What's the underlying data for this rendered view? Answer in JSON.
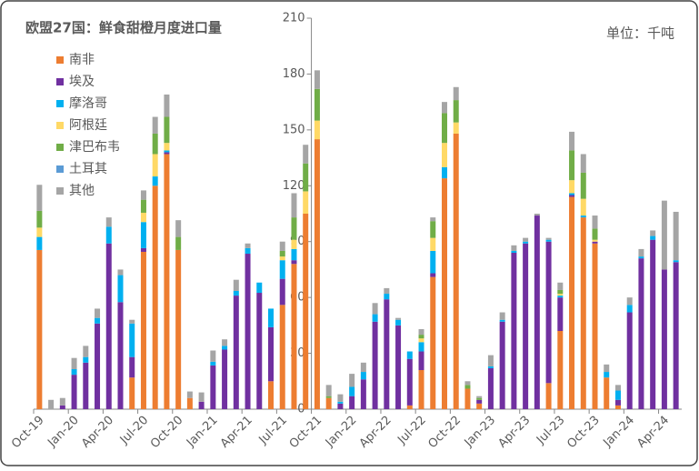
{
  "chart_data": {
    "type": "bar",
    "stacked": true,
    "title": "欧盟27国：鲜食甜橙月度进口量",
    "unit": "单位：千吨",
    "categories": [
      "Oct-19",
      null,
      null,
      "Jan-20",
      null,
      null,
      "Apr-20",
      null,
      null,
      "Jul-20",
      null,
      null,
      "Oct-20",
      null,
      null,
      "Jan-21",
      null,
      null,
      "Apr-21",
      null,
      null,
      "Jul-21",
      null,
      null,
      "Oct-21",
      null,
      null,
      "Jan-22",
      null,
      null,
      "Apr-22",
      null,
      null,
      "Jul-22",
      null,
      null,
      "Oct-22",
      null,
      null,
      "Jan-23",
      null,
      null,
      "Apr-23",
      null,
      null,
      "Jul-23",
      null,
      null,
      "Oct-23",
      null,
      null,
      "Jan-24",
      null,
      null,
      "Apr-24",
      null
    ],
    "series": [
      {
        "name": "南非",
        "color": "#ED7D31",
        "values": [
          85.5,
          0,
          0,
          0,
          0,
          0,
          0,
          0,
          17,
          84.5,
          120,
          137,
          85.5,
          6,
          0,
          0,
          0,
          0,
          0,
          0,
          15,
          56,
          78,
          105,
          145,
          6,
          0,
          0,
          0,
          0,
          0,
          0,
          2,
          21,
          71,
          124,
          148,
          11,
          3,
          0,
          0,
          0,
          0,
          0,
          14,
          42,
          114,
          103,
          89,
          17,
          2,
          0,
          0,
          0,
          0,
          0
        ]
      },
      {
        "name": "埃及",
        "color": "#7030A0",
        "values": [
          0,
          0,
          2,
          18.5,
          25,
          46,
          89,
          57.5,
          11,
          2,
          0,
          1,
          0,
          0,
          4,
          23.5,
          32,
          61,
          83.5,
          62.5,
          29,
          14,
          2,
          0,
          0,
          0,
          3,
          7,
          16,
          47,
          59,
          45,
          25,
          10,
          2,
          0,
          0,
          0,
          2,
          22,
          47,
          84,
          89,
          104,
          76,
          18,
          1,
          0,
          1,
          0,
          3,
          52,
          81,
          91,
          75,
          79
        ]
      },
      {
        "name": "摩洛哥",
        "color": "#00B0F0",
        "values": [
          7,
          0,
          0,
          3,
          3,
          3,
          9,
          14.5,
          18,
          14,
          5,
          1,
          0,
          0,
          0,
          2,
          2,
          2.5,
          3,
          5.5,
          10,
          10,
          6,
          0,
          0,
          0,
          1,
          5,
          4,
          4,
          3,
          3,
          4,
          5,
          12,
          6,
          0,
          0,
          0,
          1,
          1,
          1,
          1,
          0,
          1,
          1,
          1,
          1,
          0,
          3,
          5,
          4,
          1,
          2,
          0,
          1
        ]
      },
      {
        "name": "阿根廷",
        "color": "#FFD966",
        "values": [
          5,
          0,
          0,
          0,
          0,
          0,
          0,
          0,
          0,
          5,
          12,
          4,
          0,
          0,
          0,
          0,
          0,
          0,
          0,
          0,
          0,
          2,
          5,
          12,
          10,
          0,
          0,
          0,
          0,
          0,
          0,
          0,
          0,
          2,
          7,
          13,
          6,
          0,
          0,
          0,
          0,
          0,
          0,
          0,
          0,
          1,
          7,
          9,
          1,
          0,
          0,
          0,
          0,
          0,
          0,
          0
        ]
      },
      {
        "name": "津巴布韦",
        "color": "#70AD47",
        "values": [
          9,
          0,
          0,
          0,
          0,
          0,
          0,
          0,
          0,
          7,
          11,
          14,
          7,
          0,
          0,
          0,
          0,
          0,
          0,
          0,
          0,
          3,
          12,
          15,
          17,
          1,
          0,
          0,
          0,
          0,
          0,
          0,
          0,
          2,
          9,
          16,
          12,
          2,
          1,
          0,
          0,
          0,
          0,
          0,
          0,
          2,
          16,
          14,
          6,
          0,
          0,
          0,
          0,
          0,
          0,
          0
        ]
      },
      {
        "name": "土耳其",
        "color": "#5B9BD5",
        "values": [
          0,
          0,
          0,
          0,
          0,
          0,
          0,
          0,
          0,
          0,
          0,
          0,
          0,
          0,
          0,
          0,
          0,
          0,
          0,
          0,
          0,
          0,
          0,
          0,
          0,
          0,
          0,
          0,
          0,
          0,
          0,
          0,
          0,
          0,
          0,
          0,
          0,
          0,
          0,
          0,
          0,
          0,
          0,
          0,
          0,
          0,
          0,
          0,
          0,
          0,
          0,
          0,
          0,
          0,
          0,
          0
        ]
      },
      {
        "name": "其他",
        "color": "#A5A5A5",
        "values": [
          14,
          5,
          4,
          6,
          6,
          5,
          5,
          3,
          2,
          5,
          9,
          12,
          9,
          3.5,
          5,
          6,
          3.5,
          6,
          2.5,
          0,
          0,
          5,
          13,
          10,
          10,
          6,
          4,
          7,
          5,
          6,
          3,
          1,
          0,
          3,
          2,
          6,
          7,
          2,
          1,
          6,
          4,
          3,
          2,
          1,
          1,
          4,
          10,
          10,
          7,
          4,
          3,
          4,
          4,
          3,
          37,
          26
        ]
      }
    ],
    "ylim": [
      0,
      210
    ],
    "yticks": [
      0,
      30,
      60,
      90,
      120,
      150,
      180,
      210
    ],
    "axis_cross_category": 24
  }
}
